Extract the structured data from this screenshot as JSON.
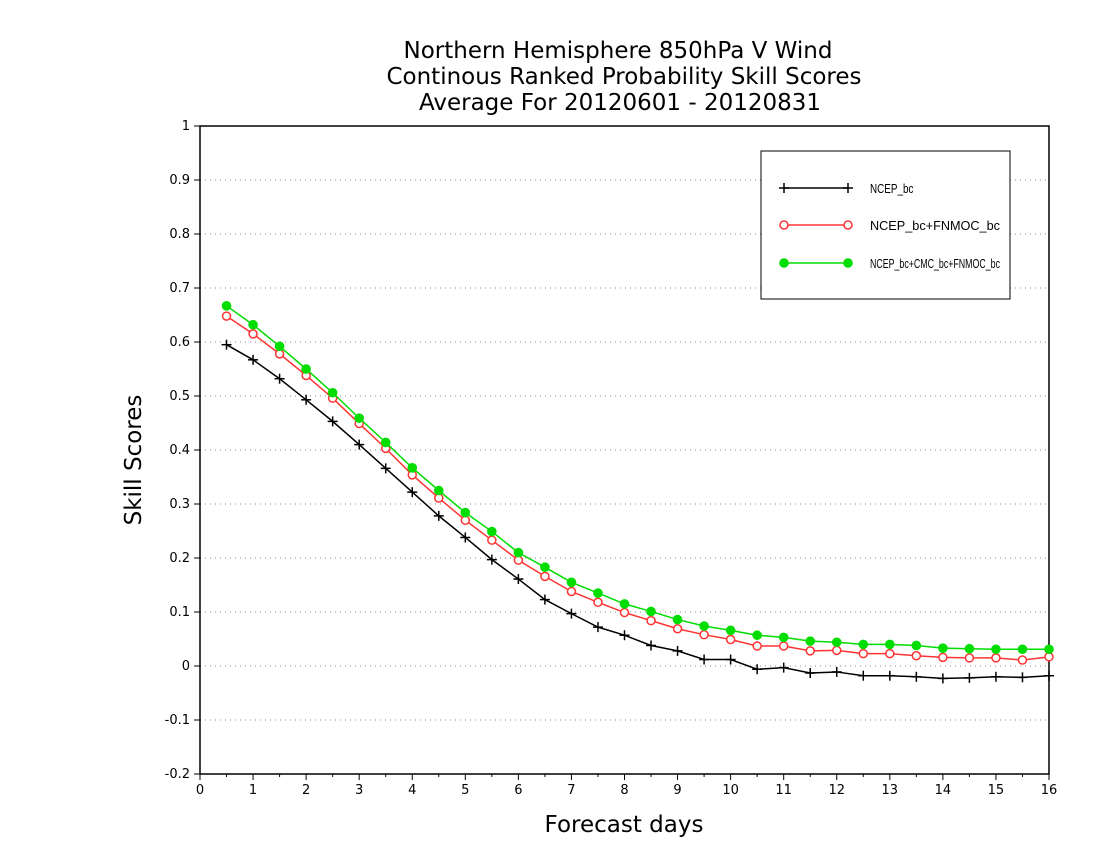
{
  "chart_data": {
    "type": "line",
    "title_lines": [
      "Northern Hemisphere 850hPa V Wind",
      "Continous Ranked Probability Skill Scores",
      "Average For 20120601 - 20120831"
    ],
    "xlabel": "Forecast days",
    "ylabel": "Skill Scores",
    "xlim": [
      0,
      16
    ],
    "ylim": [
      -0.2,
      1
    ],
    "x_ticks": [
      0,
      1,
      2,
      3,
      4,
      5,
      6,
      7,
      8,
      9,
      10,
      11,
      12,
      13,
      14,
      15,
      16
    ],
    "x_tick_labels": [
      "0",
      "1",
      "2",
      "3",
      "4",
      "5",
      "6",
      "7",
      "8",
      "9",
      "10",
      "11",
      "12",
      "13",
      "14",
      "15",
      "16"
    ],
    "y_ticks": [
      -0.2,
      -0.1,
      0,
      0.1,
      0.2,
      0.3,
      0.4,
      0.5,
      0.6,
      0.7,
      0.8,
      0.9,
      1
    ],
    "y_tick_labels": [
      "-0.2",
      "-0.1",
      "0",
      "0.1",
      "0.2",
      "0.3",
      "0.4",
      "0.5",
      "0.6",
      "0.7",
      "0.8",
      "0.9",
      "1"
    ],
    "grid": "horizontal dotted",
    "legend_position": "top-right",
    "x": [
      0.5,
      1,
      1.5,
      2,
      2.5,
      3,
      3.5,
      4,
      4.5,
      5,
      5.5,
      6,
      6.5,
      7,
      7.5,
      8,
      8.5,
      9,
      9.5,
      10,
      10.5,
      11,
      11.5,
      12,
      12.5,
      13,
      13.5,
      14,
      14.5,
      15,
      15.5,
      16
    ],
    "series": [
      {
        "name": "NCEP_bc",
        "color": "#000000",
        "marker": "plus",
        "values": [
          0.595,
          0.567,
          0.532,
          0.493,
          0.453,
          0.41,
          0.366,
          0.322,
          0.278,
          0.238,
          0.197,
          0.161,
          0.123,
          0.097,
          0.072,
          0.057,
          0.038,
          0.028,
          0.012,
          0.012,
          -0.006,
          -0.003,
          -0.013,
          -0.011,
          -0.018,
          -0.018,
          -0.02,
          -0.023,
          -0.022,
          -0.02,
          -0.021,
          -0.018
        ]
      },
      {
        "name": "NCEP_bc+FNMOC_bc",
        "color": "#ff3333",
        "marker": "open-circle",
        "values": [
          0.648,
          0.615,
          0.578,
          0.538,
          0.496,
          0.449,
          0.403,
          0.354,
          0.311,
          0.27,
          0.233,
          0.196,
          0.166,
          0.138,
          0.118,
          0.099,
          0.084,
          0.069,
          0.058,
          0.049,
          0.037,
          0.037,
          0.028,
          0.029,
          0.023,
          0.023,
          0.019,
          0.016,
          0.015,
          0.015,
          0.011,
          0.017
        ]
      },
      {
        "name": "NCEP_bc+CMC_bc+FNMOC_bc",
        "color": "#00dd00",
        "marker": "filled-circle",
        "values": [
          0.667,
          0.632,
          0.592,
          0.55,
          0.506,
          0.459,
          0.414,
          0.367,
          0.325,
          0.284,
          0.249,
          0.21,
          0.183,
          0.155,
          0.135,
          0.115,
          0.101,
          0.086,
          0.074,
          0.066,
          0.057,
          0.053,
          0.046,
          0.044,
          0.04,
          0.04,
          0.038,
          0.033,
          0.032,
          0.031,
          0.031,
          0.031
        ]
      }
    ]
  }
}
